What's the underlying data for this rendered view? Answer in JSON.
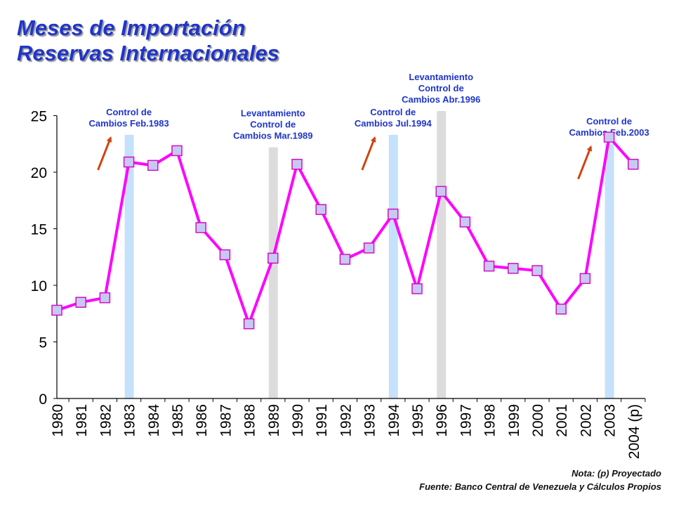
{
  "title": {
    "line1": "Meses de Importación",
    "line2": "Reservas Internacionales"
  },
  "notes": {
    "nota": "Nota: (p) Proyectado",
    "fuente": "Fuente: Banco Central de Venezuela y Cálculos Propios"
  },
  "colors": {
    "title": "#1f35c9",
    "line": "#ff00ff",
    "marker_fill": "#c8c8f4",
    "marker_stroke": "#d010c0",
    "control_band": "#c6e1fb",
    "levantamiento_band": "#dcdcdc",
    "annotation_text": "#1f35c9",
    "arrow": "#d0430f"
  },
  "chart_data": {
    "type": "line",
    "title": "Meses de Importación Reservas Internacionales",
    "xlabel": "",
    "ylabel": "",
    "ylim": [
      0,
      25
    ],
    "yticks": [
      0,
      5,
      10,
      15,
      20,
      25
    ],
    "grid": false,
    "categories": [
      "1980",
      "1981",
      "1982",
      "1983",
      "1984",
      "1985",
      "1986",
      "1987",
      "1988",
      "1989",
      "1990",
      "1991",
      "1992",
      "1993",
      "1994",
      "1995",
      "1996",
      "1997",
      "1998",
      "1999",
      "2000",
      "2001",
      "2002",
      "2003",
      "2004 (p)"
    ],
    "values": [
      7.8,
      8.5,
      8.9,
      20.9,
      20.6,
      21.9,
      15.1,
      12.7,
      6.6,
      12.4,
      20.7,
      16.7,
      12.3,
      13.3,
      16.3,
      9.7,
      18.3,
      15.6,
      11.7,
      11.5,
      11.3,
      7.9,
      10.6,
      23.1,
      20.7
    ],
    "bands": [
      {
        "category": "1983",
        "kind": "control",
        "top": 23.3,
        "label": [
          "Control de",
          "Cambios Feb.1983"
        ]
      },
      {
        "category": "1989",
        "kind": "levantamiento",
        "top": 22.2,
        "label": [
          "Levantamiento",
          "Control de",
          "Cambios Mar.1989"
        ]
      },
      {
        "category": "1994",
        "kind": "control",
        "top": 23.3,
        "label": [
          "Control de",
          "Cambios Jul.1994"
        ]
      },
      {
        "category": "1996",
        "kind": "levantamiento",
        "top": 25.4,
        "label": [
          "Levantamiento",
          "Control de",
          "Cambios Abr.1996"
        ]
      },
      {
        "category": "2003",
        "kind": "control",
        "top": 22.5,
        "label": [
          "Control de",
          "Cambios Feb.2003"
        ]
      }
    ]
  }
}
